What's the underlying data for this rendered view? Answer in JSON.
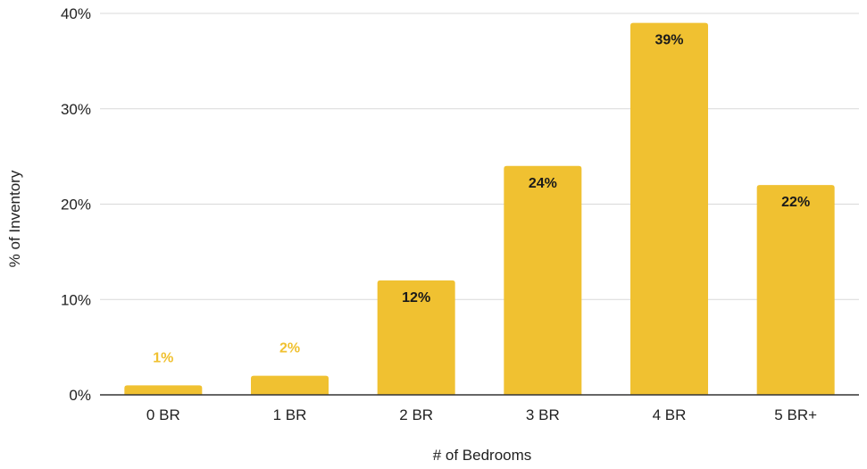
{
  "chart_data": {
    "type": "bar",
    "categories": [
      "0 BR",
      "1 BR",
      "2 BR",
      "3 BR",
      "4 BR",
      "5 BR+"
    ],
    "values": [
      1,
      2,
      12,
      24,
      39,
      22
    ],
    "data_labels": [
      "1%",
      "2%",
      "12%",
      "24%",
      "39%",
      "22%"
    ],
    "xlabel": "# of Bedrooms",
    "ylabel": "% of Inventory",
    "ylim": [
      0,
      40
    ],
    "yticks": [
      0,
      10,
      20,
      30,
      40
    ],
    "ytick_labels": [
      "0%",
      "10%",
      "20%",
      "30%",
      "40%"
    ],
    "grid": true,
    "legend": "none",
    "bar_color": "#F0C131",
    "label_color_inside": "#1a1a1a",
    "label_color_outside": "#F0C131"
  }
}
